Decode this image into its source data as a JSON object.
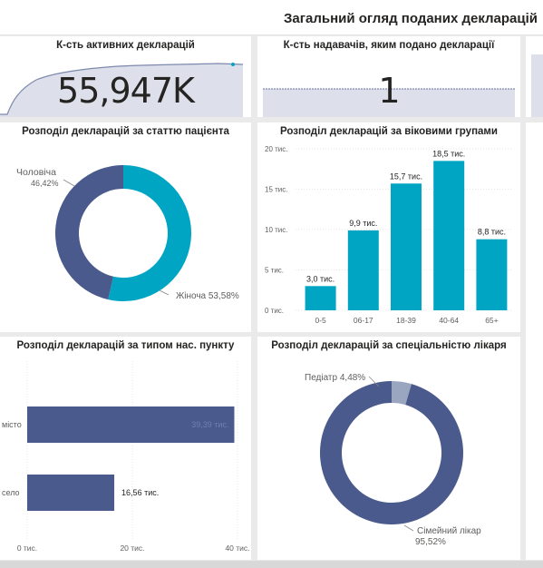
{
  "page": {
    "title": "Загальний огляд поданих декларацій"
  },
  "kpi_active": {
    "title": "К-сть активних декларацій",
    "value": "55,947K"
  },
  "kpi_providers": {
    "title": "К-сть надавачів, яким подано декларації",
    "value": "1"
  },
  "colors": {
    "teal": "#01a5c4",
    "navy": "#4a5a8c",
    "light": "#9aa6c0",
    "spark_fill": "#dde0ea",
    "text": "#252423",
    "muted": "#605e5c"
  },
  "chart_data": [
    {
      "type": "pie",
      "title": "Розподіл декларацій за статтю пацієнта",
      "categories": [
        "Чоловіча",
        "Жіноча"
      ],
      "values": [
        46.42,
        53.58
      ],
      "labels": [
        "46,42%",
        "Жіноча 53,58%"
      ]
    },
    {
      "type": "bar",
      "title": "Розподіл декларацій за віковими групами",
      "categories": [
        "0-5",
        "06-17",
        "18-39",
        "40-64",
        "65+"
      ],
      "values": [
        3.0,
        9.9,
        15.7,
        18.5,
        8.8
      ],
      "data_labels": [
        "3,0 тис.",
        "9,9 тис.",
        "15,7 тис.",
        "18,5 тис.",
        "8,8 тис."
      ],
      "yticks": [
        "0 тис.",
        "5 тис.",
        "10 тис.",
        "15 тис.",
        "20 тис."
      ],
      "ylim": [
        0,
        20
      ],
      "grid": true
    },
    {
      "type": "bar",
      "orientation": "horizontal",
      "title": "Розподіл декларацій за типом нас. пункту",
      "categories": [
        "місто",
        "село"
      ],
      "values": [
        39.39,
        16.56
      ],
      "data_labels": [
        "39,39 тис.",
        "16,56 тис."
      ],
      "xticks": [
        "0 тис.",
        "20 тис.",
        "40 тис."
      ],
      "xlim": [
        0,
        40
      ],
      "grid": true
    },
    {
      "type": "pie",
      "title": "Розподіл декларацій за спеціальністю лікаря",
      "categories": [
        "Педіатр",
        "Сімейний лікар"
      ],
      "values": [
        4.48,
        95.52
      ],
      "labels": [
        "Педіатр 4,48%",
        "Сімейний лікар",
        "95,52%"
      ]
    }
  ]
}
